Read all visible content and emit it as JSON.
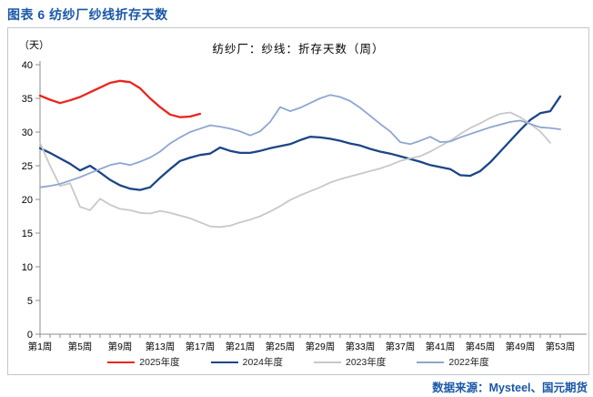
{
  "page": {
    "title": "图表 6 纺纱厂纱线折存天数",
    "source": "数据来源：Mysteel、国元期货"
  },
  "chart_data": {
    "type": "line",
    "title": "纺纱厂：纱线：折存天数（周）",
    "unit_label": "（天）",
    "ylim": [
      0,
      40
    ],
    "ytick_step": 5,
    "yticks": [
      0,
      5,
      10,
      15,
      20,
      25,
      30,
      35,
      40
    ],
    "x_unit": "week",
    "x_range": [
      1,
      53
    ],
    "xtick_labels": [
      "第1周",
      "第5周",
      "第9周",
      "第13周",
      "第17周",
      "第21周",
      "第25周",
      "第29周",
      "第33周",
      "第37周",
      "第41周",
      "第45周",
      "第49周",
      "第53周"
    ],
    "grid": false,
    "legend_position": "bottom",
    "series": [
      {
        "name": "2025年度",
        "color": "#e8261d",
        "width": 2.3,
        "values": [
          35.4,
          34.8,
          34.3,
          34.7,
          35.2,
          35.9,
          36.6,
          37.3,
          37.6,
          37.4,
          36.5,
          35.0,
          33.7,
          32.6,
          32.2,
          32.3,
          32.7
        ]
      },
      {
        "name": "2024年度",
        "color": "#1c4587",
        "width": 2.3,
        "values": [
          27.6,
          26.9,
          26.1,
          25.3,
          24.3,
          25.0,
          24.0,
          22.9,
          22.1,
          21.6,
          21.4,
          21.8,
          23.2,
          24.5,
          25.7,
          26.2,
          26.6,
          26.8,
          27.7,
          27.2,
          26.9,
          26.9,
          27.2,
          27.6,
          27.9,
          28.2,
          28.8,
          29.3,
          29.2,
          29.0,
          28.7,
          28.3,
          28.0,
          27.5,
          27.1,
          26.8,
          26.4,
          26.0,
          25.6,
          25.1,
          24.8,
          24.5,
          23.6,
          23.5,
          24.2,
          25.5,
          27.1,
          28.7,
          30.3,
          31.8,
          32.8,
          33.1,
          35.3
        ]
      },
      {
        "name": "2023年度",
        "color": "#c8c8c8",
        "width": 1.8,
        "values": [
          28.4,
          25.0,
          22.0,
          22.4,
          18.9,
          18.4,
          20.1,
          19.2,
          18.6,
          18.4,
          18.0,
          17.9,
          18.3,
          18.0,
          17.6,
          17.2,
          16.6,
          16.0,
          15.9,
          16.1,
          16.6,
          17.0,
          17.5,
          18.2,
          19.0,
          19.9,
          20.6,
          21.2,
          21.8,
          22.5,
          23.0,
          23.4,
          23.8,
          24.2,
          24.6,
          25.1,
          25.7,
          26.1,
          26.4,
          27.1,
          27.9,
          28.7,
          29.7,
          30.6,
          31.3,
          32.1,
          32.7,
          32.9,
          32.2,
          31.2,
          30.1,
          28.4
        ]
      },
      {
        "name": "2022年度",
        "color": "#8fa6cf",
        "width": 1.8,
        "values": [
          21.8,
          22.0,
          22.3,
          22.8,
          23.3,
          23.9,
          24.5,
          25.1,
          25.4,
          25.1,
          25.6,
          26.2,
          27.1,
          28.3,
          29.2,
          30.0,
          30.5,
          31.0,
          30.8,
          30.5,
          30.1,
          29.5,
          30.1,
          31.5,
          33.7,
          33.1,
          33.6,
          34.3,
          35.0,
          35.5,
          35.2,
          34.6,
          33.6,
          32.4,
          31.2,
          30.1,
          28.5,
          28.2,
          28.7,
          29.3,
          28.5,
          28.6,
          29.2,
          29.7,
          30.2,
          30.7,
          31.1,
          31.5,
          31.7,
          31.2,
          30.7,
          30.6,
          30.4
        ]
      }
    ]
  }
}
